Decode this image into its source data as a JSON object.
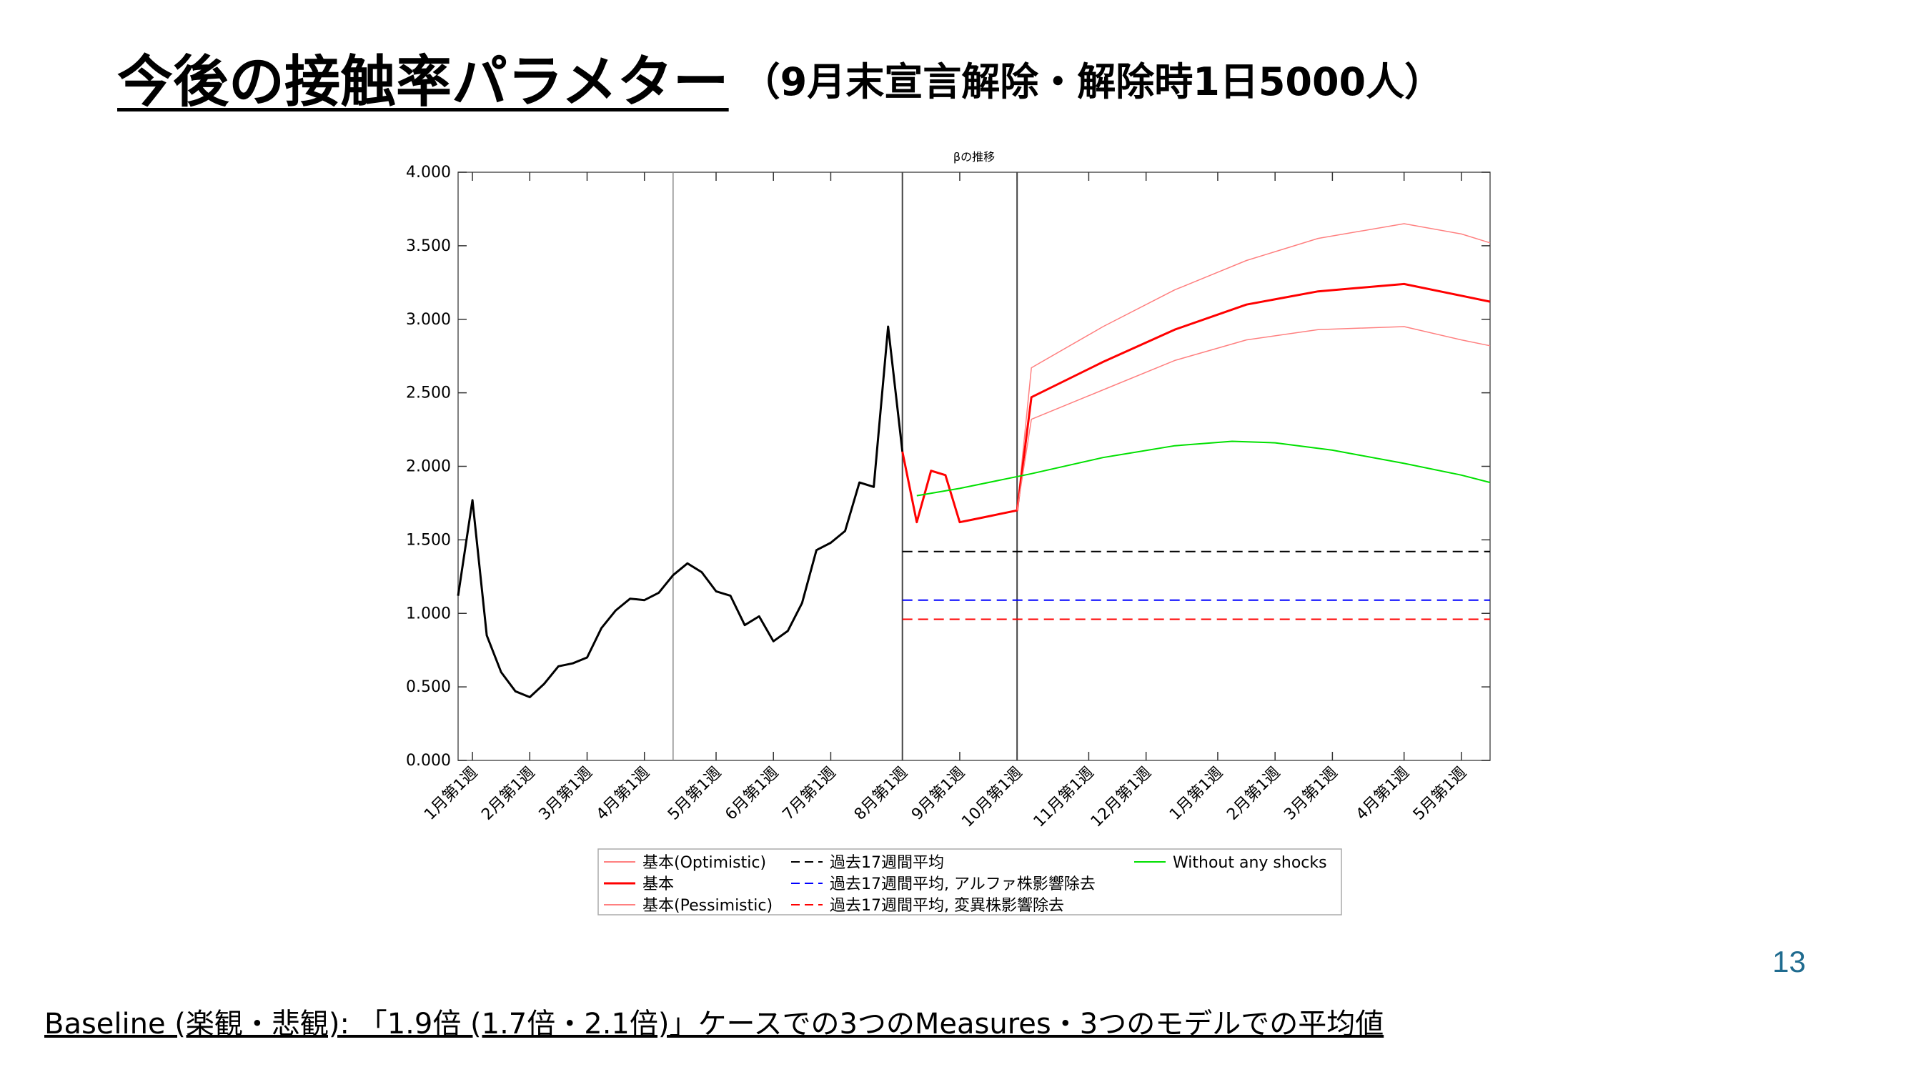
{
  "slide": {
    "title_main": "今後の接触率パラメター",
    "title_sub": "（9月末宣言解除・解除時1日5000人）",
    "page_number": "13",
    "footer": "Baseline (楽観・悲観): 「1.9倍 (1.7倍・2.1倍)」ケースでの3つのMeasures・3つのモデルでの平均値"
  },
  "chart_data": {
    "type": "line",
    "title": "βの推移",
    "xlabel": "",
    "ylabel": "",
    "ylim": [
      0,
      4
    ],
    "y_ticks": [
      "4.000",
      "3.500",
      "3.000",
      "2.500",
      "2.000",
      "1.500",
      "1.000",
      "0.500",
      "0.000"
    ],
    "x_tick_labels": [
      "1月第1週",
      "2月第1週",
      "3月第1週",
      "4月第1週",
      "5月第1週",
      "6月第1週",
      "7月第1週",
      "8月第1週",
      "9月第1週",
      "10月第1週",
      "11月第1週",
      "12月第1週",
      "1月第1週",
      "2月第1週",
      "3月第1週",
      "4月第1週",
      "5月第1週"
    ],
    "x_ticks": [
      1,
      5,
      9,
      13,
      18,
      22,
      26,
      31,
      35,
      39,
      44,
      48,
      53,
      57,
      61,
      66,
      70
    ],
    "xlim": [
      0,
      72
    ],
    "vertical_lines": [
      15,
      31,
      39
    ],
    "series": [
      {
        "name": "",
        "color": "#000000",
        "style": "solid",
        "width": 3,
        "x": [
          0,
          1,
          2,
          3,
          4,
          5,
          6,
          7,
          8,
          9,
          10,
          11,
          12,
          13,
          14,
          15,
          16,
          17,
          18,
          19,
          20,
          21,
          22,
          23,
          24,
          25,
          26,
          27,
          28,
          29,
          30,
          31
        ],
        "y": [
          1.12,
          1.77,
          0.85,
          0.6,
          0.47,
          0.43,
          0.52,
          0.64,
          0.66,
          0.7,
          0.9,
          1.02,
          1.1,
          1.09,
          1.14,
          1.26,
          1.34,
          1.28,
          1.15,
          1.12,
          0.92,
          0.98,
          0.81,
          0.88,
          1.07,
          1.43,
          1.48,
          1.56,
          1.89,
          1.86,
          2.95,
          2.1
        ]
      },
      {
        "name": "基本(Optimistic)",
        "color": "#ff8080",
        "style": "solid",
        "width": 1.5,
        "x": [
          39,
          40,
          45,
          50,
          55,
          60,
          66,
          70,
          72
        ],
        "y": [
          1.7,
          2.67,
          2.95,
          3.2,
          3.4,
          3.55,
          3.65,
          3.58,
          3.52
        ]
      },
      {
        "name": "基本",
        "color": "#ff0000",
        "style": "solid",
        "width": 3,
        "x": [
          31,
          32,
          33,
          34,
          35,
          36,
          37,
          38,
          39,
          40,
          45,
          50,
          55,
          60,
          66,
          70,
          72
        ],
        "y": [
          2.1,
          1.62,
          1.97,
          1.94,
          1.62,
          1.64,
          1.66,
          1.68,
          1.7,
          2.47,
          2.71,
          2.93,
          3.1,
          3.19,
          3.24,
          3.16,
          3.12
        ]
      },
      {
        "name": "基本(Pessimistic)",
        "color": "#ff8080",
        "style": "solid",
        "width": 1.5,
        "x": [
          39,
          40,
          45,
          50,
          55,
          60,
          66,
          70,
          72
        ],
        "y": [
          1.7,
          2.32,
          2.52,
          2.72,
          2.86,
          2.93,
          2.95,
          2.86,
          2.82
        ]
      },
      {
        "name": "過去17週間平均",
        "color": "#000000",
        "style": "dashed",
        "width": 2,
        "x": [
          31,
          72
        ],
        "y": [
          1.42,
          1.42
        ]
      },
      {
        "name": "過去17週間平均, アルファ株影響除去",
        "color": "#0000ff",
        "style": "dashed",
        "width": 2,
        "x": [
          31,
          72
        ],
        "y": [
          1.09,
          1.09
        ]
      },
      {
        "name": "過去17週間平均, 変異株影響除去",
        "color": "#ff0000",
        "style": "dashed",
        "width": 2,
        "x": [
          31,
          72
        ],
        "y": [
          0.96,
          0.96
        ]
      },
      {
        "name": "Without any shocks",
        "color": "#00e000",
        "style": "solid",
        "width": 2,
        "x": [
          32,
          35,
          40,
          45,
          50,
          54,
          57,
          61,
          66,
          70,
          72
        ],
        "y": [
          1.8,
          1.85,
          1.95,
          2.06,
          2.14,
          2.17,
          2.16,
          2.11,
          2.02,
          1.94,
          1.89
        ]
      }
    ],
    "legend_position": "bottom"
  }
}
